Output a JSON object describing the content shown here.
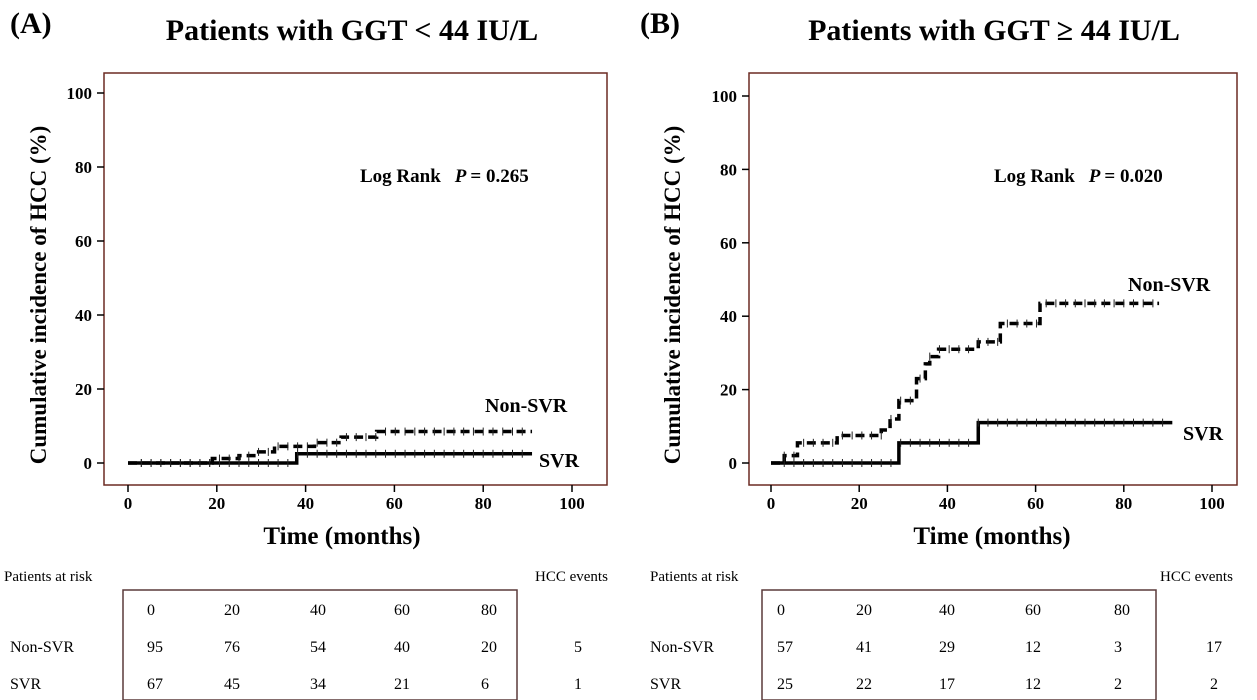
{
  "chart_data": [
    {
      "type": "line",
      "panel_label": "(A)",
      "title": "Patients with GGT < 44 IU/L",
      "xlabel": "Time (months)",
      "ylabel": "Cumulative incidence of HCC (%)",
      "xlim": [
        0,
        100
      ],
      "ylim": [
        0,
        100
      ],
      "xticks": [
        0,
        20,
        40,
        60,
        80,
        100
      ],
      "yticks": [
        0,
        20,
        40,
        60,
        80,
        100
      ],
      "annotation": {
        "text_prefix": "Log Rank",
        "p_label": "P",
        "p_value": "= 0.265"
      },
      "series": [
        {
          "name": "Non-SVR",
          "style": "dashed",
          "end_x": 91,
          "steps": [
            [
              0,
              0
            ],
            [
              19,
              1.2
            ],
            [
              25,
              2
            ],
            [
              29,
              3
            ],
            [
              33,
              4.5
            ],
            [
              42,
              5.5
            ],
            [
              48,
              7
            ],
            [
              56,
              8.5
            ]
          ]
        },
        {
          "name": "SVR",
          "style": "solid",
          "end_x": 91,
          "steps": [
            [
              0,
              0
            ],
            [
              38,
              2.5
            ]
          ]
        }
      ],
      "risk_table": {
        "header": "Patients  at risk",
        "events_header": "HCC events",
        "times": [
          "0",
          "20",
          "40",
          "60",
          "80"
        ],
        "rows": [
          {
            "label": "Non-SVR",
            "values": [
              "95",
              "76",
              "54",
              "40",
              "20"
            ],
            "events": "5"
          },
          {
            "label": "SVR",
            "values": [
              "67",
              "45",
              "34",
              "21",
              "6"
            ],
            "events": "1"
          }
        ]
      }
    },
    {
      "type": "line",
      "panel_label": "(B)",
      "title": "Patients with GGT ≥ 44 IU/L",
      "xlabel": "Time (months)",
      "ylabel": "Cumulative incidence of HCC (%)",
      "xlim": [
        0,
        100
      ],
      "ylim": [
        0,
        100
      ],
      "xticks": [
        0,
        20,
        40,
        60,
        80,
        100
      ],
      "yticks": [
        0,
        20,
        40,
        60,
        80,
        100
      ],
      "annotation": {
        "text_prefix": "Log Rank",
        "p_label": "P",
        "p_value": "= 0.020"
      },
      "series": [
        {
          "name": "Non-SVR",
          "style": "dashed",
          "end_x": 88,
          "steps": [
            [
              0,
              0
            ],
            [
              3,
              2
            ],
            [
              6,
              5.5
            ],
            [
              15,
              7.5
            ],
            [
              25,
              9
            ],
            [
              27,
              12
            ],
            [
              29,
              17
            ],
            [
              33,
              23
            ],
            [
              35,
              27
            ],
            [
              36,
              29
            ],
            [
              38,
              31
            ],
            [
              47,
              33
            ],
            [
              52,
              38
            ],
            [
              61,
              43.5
            ]
          ]
        },
        {
          "name": "SVR",
          "style": "solid",
          "end_x": 91,
          "steps": [
            [
              0,
              0
            ],
            [
              29,
              5.5
            ],
            [
              47,
              11
            ]
          ]
        }
      ],
      "risk_table": {
        "header": "Patients  at risk",
        "events_header": "HCC events",
        "times": [
          "0",
          "20",
          "40",
          "60",
          "80"
        ],
        "rows": [
          {
            "label": "Non-SVR",
            "values": [
              "57",
              "41",
              "29",
              "12",
              "3"
            ],
            "events": "17"
          },
          {
            "label": "SVR",
            "values": [
              "25",
              "22",
              "17",
              "12",
              "2"
            ],
            "events": "2"
          }
        ]
      }
    }
  ]
}
